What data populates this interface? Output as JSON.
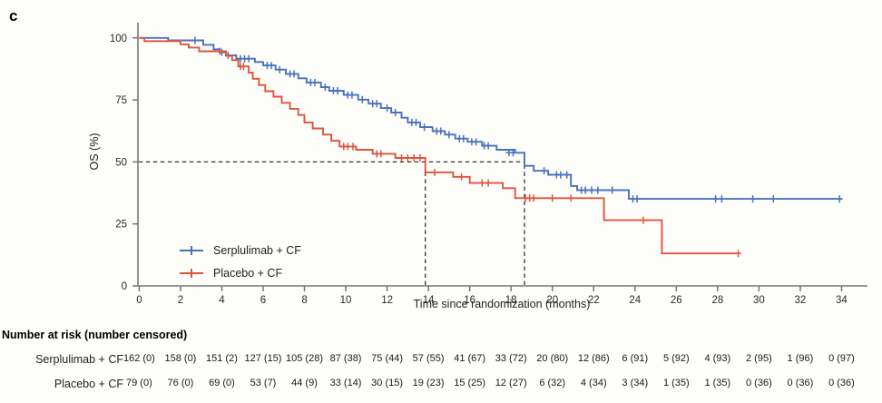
{
  "panel_label": "c",
  "axes": {
    "y_label": "OS (%)",
    "x_label": "Time since randomization (months)",
    "y_ticks": [
      0,
      25,
      50,
      75,
      100
    ],
    "x_ticks": [
      0,
      2,
      4,
      6,
      8,
      10,
      12,
      14,
      16,
      18,
      20,
      22,
      24,
      26,
      28,
      30,
      32,
      34
    ]
  },
  "colors": {
    "serplulimab_blue": "#4a72b8",
    "placebo_red": "#e0543c",
    "axis_gray": "#777777",
    "dash_black": "#333333",
    "text_dark": "#2a2a2a"
  },
  "legend": [
    {
      "label": "Serplulimab + CF",
      "color": "#4a72b8"
    },
    {
      "label": "Placebo + CF",
      "color": "#e0543c"
    }
  ],
  "chart_data": {
    "type": "line",
    "subtype": "kaplan-meier-step",
    "title": "",
    "xlabel": "Time since randomization (months)",
    "ylabel": "OS (%)",
    "xlim": [
      0,
      35.3
    ],
    "ylim": [
      0,
      100
    ],
    "grid": false,
    "legend_position": "lower-left-inside",
    "median_markers": {
      "y_percent": 50,
      "x_months": [
        13.85,
        18.65
      ]
    },
    "series": [
      {
        "name": "Serplulimab + CF",
        "color": "#4a72b8",
        "end_month": 34.0,
        "steps": [
          [
            0,
            100
          ],
          [
            1.4,
            99.0
          ],
          [
            3.1,
            97.2
          ],
          [
            3.6,
            95.4
          ],
          [
            3.9,
            94.2
          ],
          [
            4.2,
            93.0
          ],
          [
            4.7,
            91.6
          ],
          [
            5.6,
            90.3
          ],
          [
            6.0,
            88.9
          ],
          [
            6.6,
            87.2
          ],
          [
            7.1,
            85.5
          ],
          [
            7.7,
            83.7
          ],
          [
            8.1,
            82.0
          ],
          [
            8.8,
            80.1
          ],
          [
            9.2,
            78.7
          ],
          [
            9.9,
            77.0
          ],
          [
            10.6,
            75.1
          ],
          [
            11.1,
            73.5
          ],
          [
            11.7,
            71.7
          ],
          [
            12.2,
            69.9
          ],
          [
            12.7,
            67.8
          ],
          [
            13.0,
            65.9
          ],
          [
            13.6,
            64.0
          ],
          [
            14.2,
            62.4
          ],
          [
            14.8,
            61.0
          ],
          [
            15.3,
            59.4
          ],
          [
            15.9,
            58.1
          ],
          [
            16.6,
            56.5
          ],
          [
            17.3,
            54.9
          ],
          [
            18.2,
            53.7
          ],
          [
            18.65,
            48.4
          ],
          [
            19.1,
            46.4
          ],
          [
            19.8,
            44.8
          ],
          [
            20.9,
            40.3
          ],
          [
            21.2,
            38.6
          ],
          [
            23.7,
            35.1
          ]
        ],
        "censor_marks": [
          [
            2.7,
            99.0
          ],
          [
            4.0,
            94.2
          ],
          [
            4.3,
            93.0
          ],
          [
            4.9,
            91.6
          ],
          [
            5.1,
            91.6
          ],
          [
            5.3,
            91.6
          ],
          [
            6.2,
            88.9
          ],
          [
            6.4,
            88.9
          ],
          [
            6.8,
            87.2
          ],
          [
            7.3,
            85.5
          ],
          [
            7.5,
            85.5
          ],
          [
            8.3,
            82.0
          ],
          [
            8.5,
            82.0
          ],
          [
            9.0,
            80.1
          ],
          [
            9.4,
            78.7
          ],
          [
            9.6,
            78.7
          ],
          [
            10.1,
            77.0
          ],
          [
            10.3,
            77.0
          ],
          [
            10.8,
            75.1
          ],
          [
            11.3,
            73.5
          ],
          [
            11.5,
            73.5
          ],
          [
            12.0,
            71.7
          ],
          [
            12.4,
            69.9
          ],
          [
            13.2,
            65.9
          ],
          [
            13.4,
            65.9
          ],
          [
            13.8,
            64.0
          ],
          [
            14.4,
            62.4
          ],
          [
            14.6,
            62.4
          ],
          [
            15.0,
            61.0
          ],
          [
            15.5,
            59.4
          ],
          [
            15.7,
            59.4
          ],
          [
            16.1,
            58.1
          ],
          [
            16.3,
            58.1
          ],
          [
            16.7,
            56.5
          ],
          [
            16.9,
            56.5
          ],
          [
            17.9,
            53.7
          ],
          [
            18.1,
            53.7
          ],
          [
            19.6,
            46.4
          ],
          [
            20.2,
            44.8
          ],
          [
            20.4,
            44.8
          ],
          [
            20.7,
            44.8
          ],
          [
            21.4,
            38.6
          ],
          [
            21.6,
            38.6
          ],
          [
            21.9,
            38.6
          ],
          [
            22.2,
            38.6
          ],
          [
            22.9,
            38.6
          ],
          [
            23.9,
            35.1
          ],
          [
            24.1,
            35.1
          ],
          [
            27.9,
            35.1
          ],
          [
            28.2,
            35.1
          ],
          [
            29.7,
            35.1
          ],
          [
            30.7,
            35.1
          ],
          [
            33.9,
            35.1
          ]
        ]
      },
      {
        "name": "Placebo + CF",
        "color": "#e0543c",
        "end_month": 29.0,
        "steps": [
          [
            0,
            100
          ],
          [
            0.25,
            98.7
          ],
          [
            2.0,
            97.4
          ],
          [
            2.4,
            96.1
          ],
          [
            2.9,
            94.6
          ],
          [
            4.2,
            92.8
          ],
          [
            4.5,
            91.0
          ],
          [
            4.8,
            88.5
          ],
          [
            5.3,
            86.0
          ],
          [
            5.5,
            83.5
          ],
          [
            5.8,
            81.0
          ],
          [
            6.1,
            78.5
          ],
          [
            6.5,
            76.3
          ],
          [
            6.9,
            73.8
          ],
          [
            7.3,
            71.4
          ],
          [
            7.7,
            68.9
          ],
          [
            8.0,
            65.9
          ],
          [
            8.4,
            63.5
          ],
          [
            8.9,
            61.0
          ],
          [
            9.3,
            58.5
          ],
          [
            9.7,
            56.2
          ],
          [
            10.5,
            54.9
          ],
          [
            11.3,
            53.3
          ],
          [
            12.4,
            51.6
          ],
          [
            13.85,
            45.8
          ],
          [
            15.2,
            44.0
          ],
          [
            16.0,
            41.5
          ],
          [
            17.6,
            39.4
          ],
          [
            18.2,
            35.4
          ],
          [
            22.5,
            26.5
          ],
          [
            25.3,
            13.1
          ]
        ],
        "censor_marks": [
          [
            3.9,
            94.6
          ],
          [
            4.9,
            88.5
          ],
          [
            5.05,
            88.5
          ],
          [
            9.9,
            56.2
          ],
          [
            10.1,
            56.2
          ],
          [
            10.35,
            56.2
          ],
          [
            11.5,
            53.3
          ],
          [
            11.7,
            53.3
          ],
          [
            12.7,
            51.6
          ],
          [
            13.0,
            51.6
          ],
          [
            13.3,
            51.6
          ],
          [
            13.6,
            51.6
          ],
          [
            14.3,
            45.8
          ],
          [
            15.6,
            44.0
          ],
          [
            16.6,
            41.5
          ],
          [
            16.9,
            41.5
          ],
          [
            18.7,
            35.4
          ],
          [
            18.9,
            35.4
          ],
          [
            19.1,
            35.4
          ],
          [
            20.0,
            35.4
          ],
          [
            20.9,
            35.4
          ],
          [
            24.4,
            26.5
          ],
          [
            29.0,
            13.1
          ]
        ]
      }
    ]
  },
  "risk_table": {
    "header": "Number at risk (number censored)",
    "time_points": [
      0,
      2,
      4,
      6,
      8,
      10,
      12,
      14,
      16,
      18,
      20,
      22,
      24,
      26,
      28,
      30,
      32,
      34
    ],
    "rows": [
      {
        "label": "Serplulimab + CF",
        "values": [
          "162 (0)",
          "158 (0)",
          "151 (2)",
          "127 (15)",
          "105 (28)",
          "87 (38)",
          "75 (44)",
          "57 (55)",
          "41 (67)",
          "33 (72)",
          "20 (80)",
          "12 (86)",
          "6 (91)",
          "5 (92)",
          "4 (93)",
          "2 (95)",
          "1 (96)",
          "0 (97)"
        ]
      },
      {
        "label": "Placebo + CF",
        "values": [
          "79 (0)",
          "76 (0)",
          "69 (0)",
          "53 (7)",
          "44 (9)",
          "33 (14)",
          "30 (15)",
          "19 (23)",
          "15 (25)",
          "12 (27)",
          "6 (32)",
          "4 (34)",
          "3 (34)",
          "1 (35)",
          "1 (35)",
          "0 (36)",
          "0 (36)",
          "0 (36)"
        ]
      }
    ]
  }
}
